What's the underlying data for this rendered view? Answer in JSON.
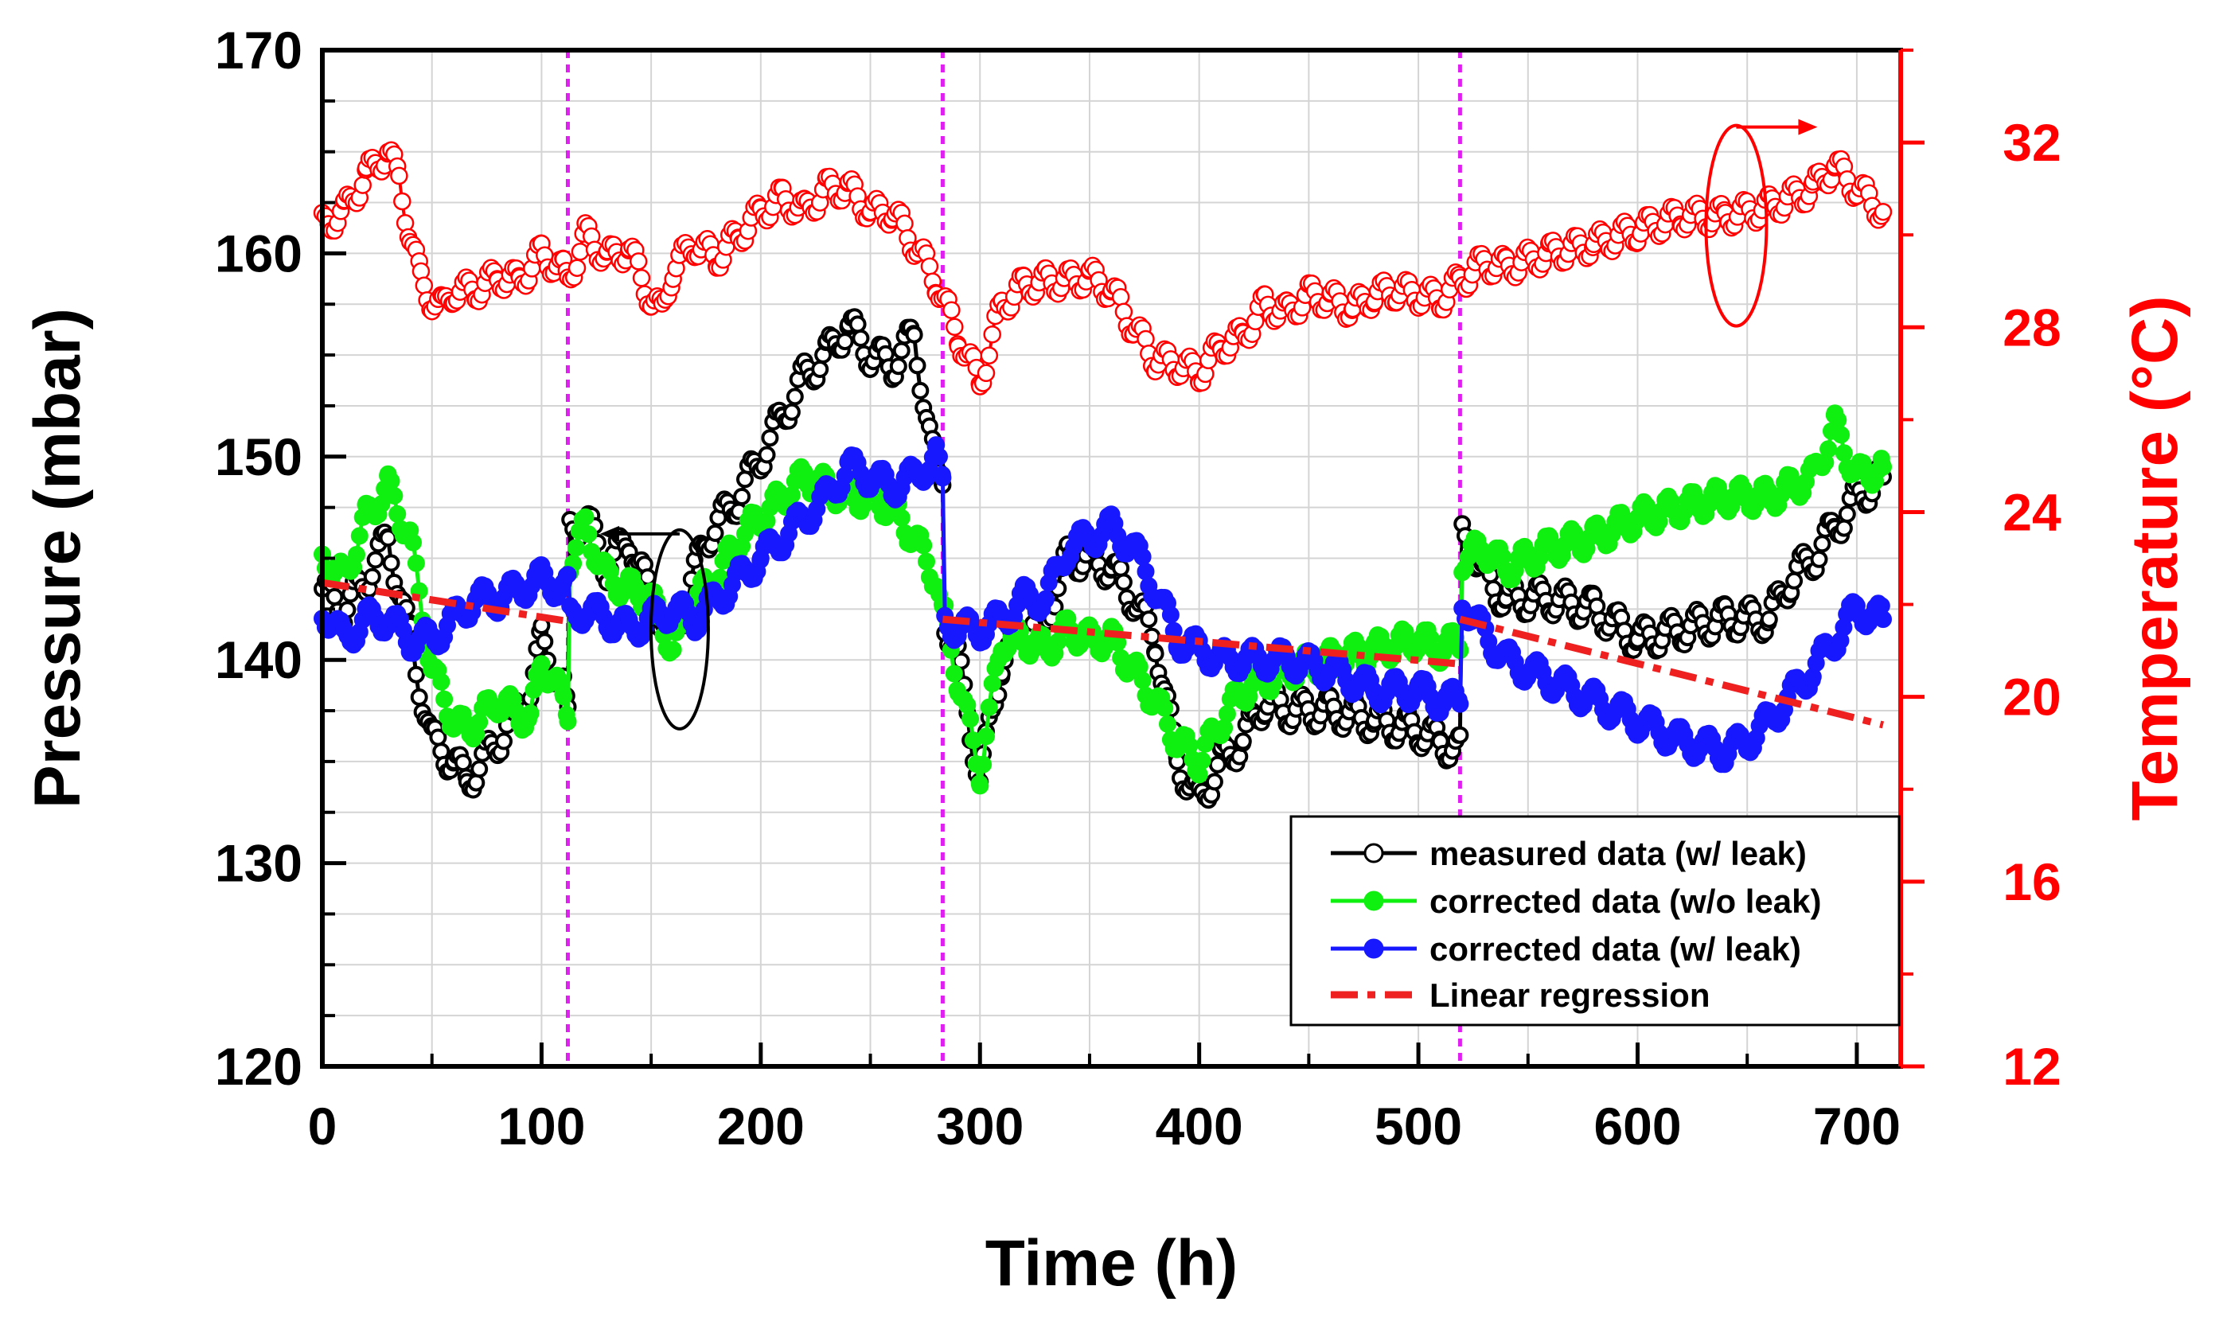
{
  "chart_data": {
    "type": "line",
    "title": "",
    "xlabel": "Time (h)",
    "ylabel": "Pressure (mbar)",
    "y2label": "Temperature (°C)",
    "xlim": [
      0,
      720
    ],
    "ylim": [
      120,
      170
    ],
    "y2lim": [
      12,
      34
    ],
    "x_ticks": [
      "0",
      "100",
      "200",
      "300",
      "400",
      "500",
      "600",
      "700"
    ],
    "y_ticks": [
      "120",
      "130",
      "140",
      "150",
      "160",
      "170"
    ],
    "y2_ticks": [
      "12",
      "16",
      "20",
      "24",
      "28",
      "32"
    ],
    "grid": true,
    "legend_position": "bottom-right",
    "vertical_markers": [
      112,
      283,
      519
    ],
    "series": [
      {
        "name": "measured data (w/ leak)",
        "axis": "left",
        "color": "#000000",
        "marker": "open-circle",
        "x": [
          0,
          10,
          20,
          30,
          40,
          50,
          60,
          66,
          80,
          95,
          100,
          110,
          112,
          113,
          120,
          130,
          140,
          150,
          160,
          175,
          190,
          200,
          210,
          220,
          230,
          240,
          250,
          260,
          270,
          280,
          283,
          284,
          290,
          300,
          310,
          320,
          330,
          340,
          350,
          360,
          370,
          380,
          390,
          400,
          410,
          420,
          430,
          440,
          460,
          480,
          500,
          510,
          519,
          520,
          525,
          530,
          540,
          560,
          580,
          600,
          620,
          640,
          660,
          670,
          680,
          690,
          700,
          712
        ],
        "y": [
          143.5,
          142.5,
          144.0,
          146.0,
          141.0,
          136.0,
          135.0,
          134.0,
          136.0,
          138.5,
          141.0,
          138.5,
          137.0,
          146.5,
          147.0,
          144.5,
          146.0,
          143.0,
          141.0,
          146.0,
          148.0,
          150.0,
          152.0,
          154.0,
          155.0,
          156.5,
          155.0,
          154.5,
          156.0,
          149.0,
          149.0,
          142.0,
          140.0,
          134.0,
          140.0,
          141.5,
          142.0,
          145.0,
          145.0,
          144.5,
          143.0,
          141.0,
          135.0,
          133.0,
          135.0,
          136.0,
          138.0,
          137.5,
          137.5,
          137.0,
          136.5,
          136.0,
          135.5,
          146.0,
          145.5,
          144.0,
          143.0,
          143.0,
          142.5,
          141.0,
          141.5,
          142.0,
          142.0,
          144.0,
          145.0,
          146.5,
          148.0,
          149.0
        ]
      },
      {
        "name": "corrected data (w/o leak)",
        "axis": "left",
        "color": "#10f010",
        "marker": "filled-circle",
        "x": [
          0,
          10,
          20,
          30,
          40,
          50,
          60,
          66,
          80,
          95,
          100,
          110,
          112,
          113,
          120,
          130,
          140,
          150,
          160,
          170,
          180,
          190,
          200,
          210,
          220,
          230,
          240,
          250,
          260,
          270,
          280,
          283,
          284,
          290,
          300,
          310,
          320,
          330,
          340,
          350,
          360,
          370,
          380,
          390,
          400,
          410,
          420,
          440,
          460,
          480,
          500,
          510,
          519,
          520,
          530,
          540,
          560,
          580,
          600,
          620,
          640,
          660,
          680,
          690,
          700,
          712
        ],
        "y": [
          145.0,
          144.0,
          147.0,
          148.5,
          146.0,
          139.5,
          137.0,
          136.5,
          138.0,
          137.0,
          140.0,
          138.0,
          137.5,
          145.0,
          146.5,
          144.0,
          143.5,
          143.0,
          140.5,
          143.0,
          144.0,
          146.0,
          147.0,
          148.0,
          149.0,
          148.5,
          148.0,
          148.0,
          147.5,
          146.0,
          144.0,
          142.0,
          142.0,
          139.0,
          134.5,
          141.0,
          141.0,
          140.5,
          141.5,
          141.0,
          141.0,
          139.5,
          138.0,
          136.0,
          135.0,
          137.0,
          138.5,
          139.5,
          140.0,
          140.5,
          141.0,
          140.5,
          141.0,
          145.0,
          145.5,
          144.5,
          145.5,
          146.0,
          147.0,
          147.5,
          148.0,
          148.0,
          149.0,
          151.5,
          149.0,
          149.5
        ]
      },
      {
        "name": "corrected data (w/ leak)",
        "axis": "left",
        "color": "#1818ff",
        "marker": "filled-circle",
        "x": [
          0,
          10,
          20,
          30,
          40,
          50,
          60,
          70,
          80,
          90,
          100,
          110,
          112,
          113,
          120,
          130,
          140,
          150,
          160,
          170,
          180,
          190,
          200,
          210,
          220,
          230,
          240,
          250,
          260,
          270,
          280,
          283,
          284,
          290,
          300,
          310,
          320,
          330,
          340,
          350,
          360,
          370,
          380,
          390,
          400,
          410,
          420,
          440,
          460,
          480,
          500,
          510,
          519,
          520,
          525,
          540,
          560,
          580,
          600,
          620,
          640,
          650,
          660,
          680,
          700,
          712
        ],
        "y": [
          142.5,
          141.0,
          142.0,
          142.0,
          141.0,
          141.0,
          142.0,
          143.0,
          143.0,
          143.5,
          144.0,
          143.5,
          143.5,
          142.0,
          142.5,
          142.0,
          141.5,
          142.0,
          142.5,
          142.0,
          143.0,
          144.0,
          145.0,
          146.0,
          147.0,
          148.0,
          149.5,
          149.0,
          148.5,
          149.0,
          150.0,
          148.5,
          142.0,
          141.5,
          141.5,
          142.0,
          143.0,
          143.0,
          145.5,
          146.0,
          146.5,
          145.5,
          143.5,
          141.0,
          140.5,
          140.0,
          140.0,
          140.0,
          139.5,
          138.5,
          138.5,
          138.0,
          138.0,
          143.0,
          142.0,
          140.0,
          139.0,
          138.0,
          137.0,
          136.0,
          135.5,
          136.0,
          137.0,
          139.5,
          142.5,
          142.0
        ]
      },
      {
        "name": "Linear regression",
        "axis": "left",
        "color": "#ee2020",
        "marker": "dash-dot",
        "segments": [
          {
            "x": [
              0,
              112
            ],
            "y": [
              143.8,
              141.9
            ]
          },
          {
            "x": [
              283,
              519
            ],
            "y": [
              142.0,
              139.8
            ]
          },
          {
            "x": [
              519,
              712
            ],
            "y": [
              142.0,
              136.8
            ]
          }
        ]
      },
      {
        "name": "Temperature",
        "axis": "right",
        "color": "#ff0000",
        "marker": "open-circle",
        "x": [
          0,
          10,
          20,
          30,
          35,
          40,
          45,
          50,
          55,
          60,
          70,
          80,
          90,
          100,
          110,
          112,
          120,
          130,
          140,
          150,
          155,
          160,
          170,
          180,
          190,
          200,
          210,
          220,
          230,
          240,
          250,
          260,
          270,
          280,
          290,
          300,
          310,
          320,
          330,
          340,
          350,
          360,
          370,
          380,
          390,
          400,
          410,
          420,
          430,
          440,
          450,
          460,
          470,
          480,
          490,
          500,
          510,
          519,
          530,
          540,
          560,
          580,
          600,
          620,
          640,
          660,
          680,
          690,
          700,
          712
        ],
        "y": [
          30.2,
          30.5,
          31.3,
          31.8,
          31.2,
          30.0,
          29.0,
          28.6,
          28.4,
          28.8,
          28.8,
          29.1,
          29.0,
          29.6,
          29.2,
          29.0,
          30.0,
          29.5,
          29.7,
          28.6,
          28.3,
          29.3,
          29.8,
          29.5,
          30.0,
          30.5,
          30.8,
          30.5,
          31.0,
          31.0,
          30.5,
          30.5,
          29.8,
          29.0,
          27.8,
          26.8,
          28.5,
          28.9,
          29.0,
          29.0,
          29.1,
          28.8,
          28.0,
          27.3,
          27.2,
          27.0,
          27.6,
          27.8,
          28.5,
          28.3,
          28.7,
          28.6,
          28.4,
          28.7,
          28.8,
          28.7,
          28.6,
          29.0,
          29.4,
          29.3,
          29.6,
          29.8,
          30.1,
          30.4,
          30.4,
          30.6,
          31.0,
          31.5,
          31.0,
          30.5
        ]
      }
    ],
    "annotations": [
      {
        "type": "ellipse-arrow",
        "points_to": "left axis (pressure)"
      },
      {
        "type": "ellipse-arrow",
        "points_to": "right axis (temperature)"
      }
    ]
  },
  "colors": {
    "measured": "#000000",
    "corrected_no_leak": "#10f010",
    "corrected_leak": "#1818ff",
    "regression": "#ee2020",
    "temperature": "#ff0000",
    "vertical_marker": "#e020f0",
    "grid": "#d4d4d4"
  }
}
